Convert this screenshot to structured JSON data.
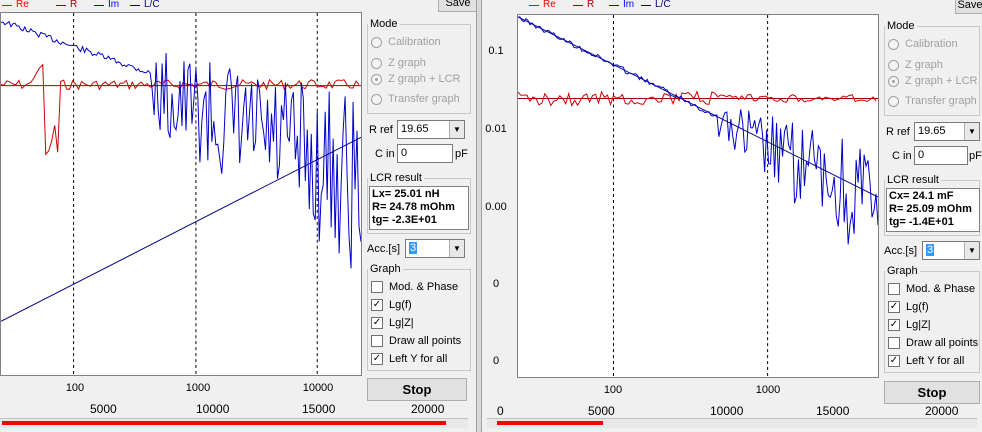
{
  "legend": [
    {
      "label": "Re",
      "color": "#ff0000"
    },
    {
      "label": "R",
      "color": "#a00000"
    },
    {
      "label": "Im",
      "color": "#0000ff"
    },
    {
      "label": "L/C",
      "color": "#000080"
    }
  ],
  "colors": {
    "red_trace": "#cc0000",
    "blue_trace": "#0000cc",
    "progress": "#ff0000"
  },
  "left": {
    "save_label": "Save",
    "mode_title": "Mode",
    "modes": [
      "Calibration",
      "Z graph",
      "Z graph + LCR",
      "Transfer graph"
    ],
    "rref_label": "R ref",
    "rref_value": "19.65",
    "cin_label": "C in",
    "cin_value": "0",
    "cin_unit": "pF",
    "lcr_title": "LCR result",
    "lcr_lines": [
      "Lx= 25.01 nH",
      "R= 24.78 mOhm",
      "tg= -2.3E+01"
    ],
    "acc_label": "Acc.[s]",
    "acc_value": "3",
    "graph_title": "Graph",
    "graph_options": [
      {
        "label": "Mod. & Phase",
        "checked": false
      },
      {
        "label": "Lg(f)",
        "checked": true
      },
      {
        "label": "Lg|Z|",
        "checked": true
      },
      {
        "label": "Draw all points",
        "checked": false
      },
      {
        "label": "Left Y for all",
        "checked": true
      }
    ],
    "stop_label": "Stop",
    "freq_ticks": [
      "100",
      "1000",
      "10000"
    ],
    "count_ticks": [
      "5000",
      "10000",
      "15000",
      "20000"
    ],
    "progress": 0.96
  },
  "right": {
    "save_label": "Save",
    "mode_title": "Mode",
    "modes": [
      "Calibration",
      "Z graph",
      "Z graph + LCR",
      "Transfer graph"
    ],
    "rref_label": "R ref",
    "rref_value": "19.65",
    "cin_label": "C in",
    "cin_value": "0",
    "cin_unit": "pF",
    "lcr_title": "LCR result",
    "lcr_lines": [
      "Cx= 24.1 mF",
      "R= 25.09 mOhm",
      "tg= -1.4E+01"
    ],
    "acc_label": "Acc.[s]",
    "acc_value": "3",
    "graph_title": "Graph",
    "graph_options": [
      {
        "label": "Mod. & Phase",
        "checked": false
      },
      {
        "label": "Lg(f)",
        "checked": true
      },
      {
        "label": "Lg|Z|",
        "checked": true
      },
      {
        "label": "Draw all points",
        "checked": false
      },
      {
        "label": "Left Y for all",
        "checked": true
      }
    ],
    "stop_label": "Stop",
    "y_ticks": [
      "0.1",
      "0.01",
      "0.00",
      "0",
      "0"
    ],
    "freq_ticks": [
      "100",
      "1000"
    ],
    "count_ticks": [
      "0",
      "5000",
      "10000",
      "15000",
      "20000"
    ],
    "progress": 0.22
  }
}
